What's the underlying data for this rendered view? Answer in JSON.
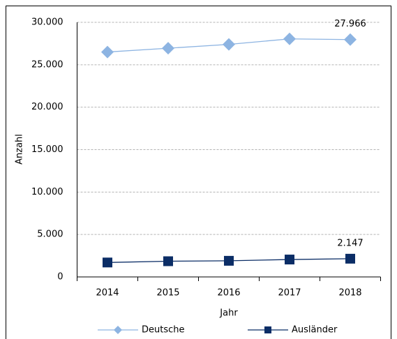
{
  "chart_data": {
    "type": "line",
    "categories": [
      "2014",
      "2015",
      "2016",
      "2017",
      "2018"
    ],
    "series": [
      {
        "name": "Deutsche",
        "color": "#8db4e2",
        "marker": "diamond",
        "values": [
          26500,
          26950,
          27400,
          28050,
          27966
        ],
        "value_labels": [
          null,
          null,
          null,
          null,
          "27.966"
        ]
      },
      {
        "name": "Ausländer",
        "color": "#0b2d66",
        "marker": "square",
        "values": [
          1700,
          1850,
          1900,
          2050,
          2147
        ],
        "value_labels": [
          null,
          null,
          null,
          null,
          "2.147"
        ]
      }
    ],
    "ylabel": "Anzahl",
    "xlabel": "Jahr",
    "ylim": [
      0,
      30000
    ],
    "yticks": [
      0,
      {
        "value": 5000,
        "label": "5.000"
      },
      {
        "value": 10000,
        "label": "10.000"
      },
      {
        "value": 15000,
        "label": "15.000"
      },
      {
        "value": 20000,
        "label": "20.000"
      },
      {
        "value": 25000,
        "label": "25.000"
      },
      {
        "value": 30000,
        "label": "30.000"
      }
    ],
    "grid": true,
    "legend": "bottom"
  }
}
